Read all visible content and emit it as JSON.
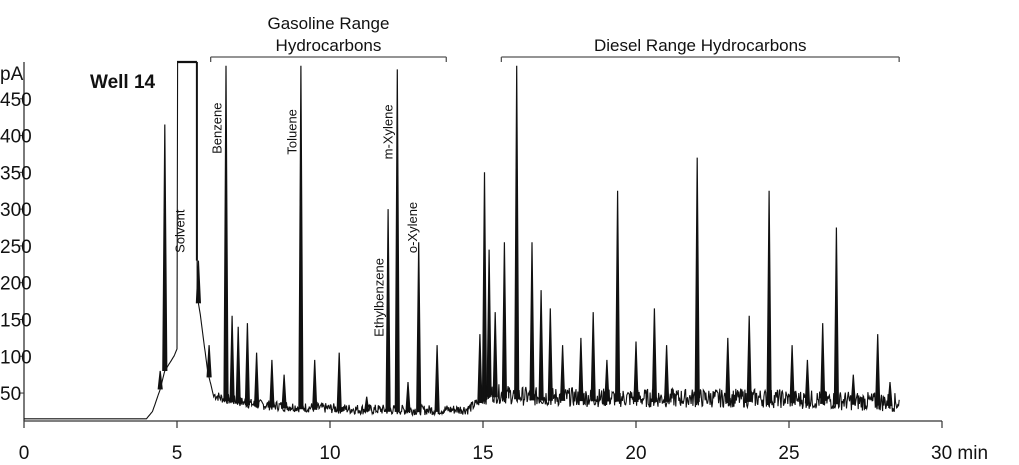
{
  "chart_data": {
    "type": "line",
    "title": "Well 14",
    "ylabel": "pA",
    "xunit": "min",
    "xlim": [
      0,
      30
    ],
    "ylim": [
      12,
      500
    ],
    "x_ticks": [
      0,
      5,
      10,
      15,
      20,
      25,
      30
    ],
    "y_ticks": [
      50,
      100,
      150,
      200,
      250,
      300,
      350,
      400,
      450
    ],
    "x_tick_labels": [
      "0",
      "5",
      "10",
      "15",
      "20",
      "25",
      "30 min"
    ],
    "y_tick_labels": [
      "50",
      "100",
      "150",
      "200",
      "250",
      "300",
      "350",
      "400",
      "450"
    ],
    "grid": false,
    "colors": {
      "trace": "#111111",
      "axis": "#333333",
      "bracket": "#555555"
    },
    "baseline": [
      [
        0,
        15
      ],
      [
        4.0,
        15
      ],
      [
        4.2,
        25
      ],
      [
        4.45,
        55
      ],
      [
        4.6,
        80
      ],
      [
        4.9,
        100
      ],
      [
        5.2,
        130
      ],
      [
        5.5,
        220
      ],
      [
        5.75,
        160
      ],
      [
        6.0,
        80
      ],
      [
        6.2,
        45
      ],
      [
        6.5,
        40
      ],
      [
        7.5,
        32
      ],
      [
        9.0,
        28
      ],
      [
        11.0,
        25
      ],
      [
        13.0,
        24
      ],
      [
        14.5,
        25
      ],
      [
        15.2,
        45
      ],
      [
        16.5,
        40
      ],
      [
        20.0,
        38
      ],
      [
        24.0,
        38
      ],
      [
        28.6,
        32
      ]
    ],
    "solvent_plateau": [
      5.0,
      5.65
    ],
    "peaks": [
      [
        4.45,
        80
      ],
      [
        4.6,
        415
      ],
      [
        5.7,
        230
      ],
      [
        6.05,
        115
      ],
      [
        6.6,
        495
      ],
      [
        6.8,
        155
      ],
      [
        7.0,
        140
      ],
      [
        7.3,
        145
      ],
      [
        7.6,
        105
      ],
      [
        8.1,
        95
      ],
      [
        8.5,
        75
      ],
      [
        9.05,
        495
      ],
      [
        9.5,
        95
      ],
      [
        10.3,
        105
      ],
      [
        11.2,
        45
      ],
      [
        11.9,
        300
      ],
      [
        12.2,
        490
      ],
      [
        12.55,
        65
      ],
      [
        12.9,
        255
      ],
      [
        13.5,
        115
      ],
      [
        14.9,
        130
      ],
      [
        15.05,
        350
      ],
      [
        15.2,
        245
      ],
      [
        15.4,
        160
      ],
      [
        15.7,
        255
      ],
      [
        16.1,
        495
      ],
      [
        16.6,
        255
      ],
      [
        16.9,
        190
      ],
      [
        17.2,
        165
      ],
      [
        17.6,
        115
      ],
      [
        18.2,
        125
      ],
      [
        18.6,
        160
      ],
      [
        19.05,
        95
      ],
      [
        19.4,
        325
      ],
      [
        20.0,
        120
      ],
      [
        20.6,
        165
      ],
      [
        21.0,
        115
      ],
      [
        22.0,
        370
      ],
      [
        23.0,
        125
      ],
      [
        23.7,
        155
      ],
      [
        24.35,
        325
      ],
      [
        25.1,
        115
      ],
      [
        25.6,
        95
      ],
      [
        26.1,
        145
      ],
      [
        26.55,
        275
      ],
      [
        27.1,
        75
      ],
      [
        27.9,
        130
      ],
      [
        28.3,
        65
      ]
    ],
    "peak_labels": [
      {
        "text": "Solvent",
        "x": 5.25,
        "y": 270
      },
      {
        "text": "Benzene",
        "x": 6.45,
        "y": 410
      },
      {
        "text": "Toluene",
        "x": 8.9,
        "y": 405
      },
      {
        "text": "Ethylbenzene",
        "x": 11.75,
        "y": 180
      },
      {
        "text": "m-Xylene",
        "x": 12.05,
        "y": 405
      },
      {
        "text": "o-Xylene",
        "x": 12.85,
        "y": 275
      }
    ],
    "ranges": [
      {
        "lines": [
          "Gasoline Range",
          "Hydrocarbons"
        ],
        "start": 6.1,
        "end": 13.8
      },
      {
        "lines": [
          "Diesel Range Hydrocarbons"
        ],
        "start": 15.6,
        "end": 28.6
      }
    ]
  }
}
